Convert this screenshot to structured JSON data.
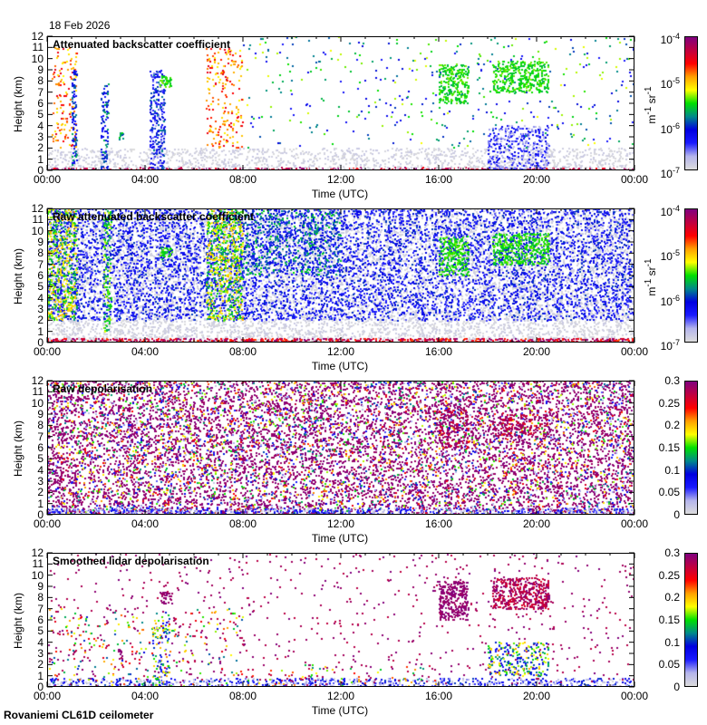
{
  "header": {
    "date": "18 Feb 2026"
  },
  "footer": {
    "station": "Rovaniemi CL61D ceilometer"
  },
  "colormap": [
    "#dcdcdc",
    "#b4b4ec",
    "#1a1aff",
    "#0000e0",
    "#008a8a",
    "#00e000",
    "#ffff00",
    "#ffa000",
    "#ff0000",
    "#c00040",
    "#800080"
  ],
  "chart_data": [
    {
      "type": "heatmap",
      "title": "Attenuated backscatter coefficient",
      "xlabel": "Time (UTC)",
      "ylabel": "Height (km)",
      "xlim": [
        0,
        24
      ],
      "ylim": [
        0,
        12
      ],
      "xticks": [
        "00:00",
        "04:00",
        "08:00",
        "12:00",
        "16:00",
        "20:00",
        "00:00"
      ],
      "yticks": [
        "0",
        "1",
        "2",
        "3",
        "4",
        "5",
        "6",
        "7",
        "8",
        "9",
        "10",
        "11",
        "12"
      ],
      "colorbar": {
        "scale": "log",
        "label": "m-1 sr-1",
        "label_parts": [
          "m",
          "-1",
          " sr",
          "-1"
        ],
        "ticks": [
          {
            "base": "10",
            "exp": "-7"
          },
          {
            "base": "10",
            "exp": "-6"
          },
          {
            "base": "10",
            "exp": "-5"
          },
          {
            "base": "10",
            "exp": "-4"
          }
        ],
        "range": [
          1e-07,
          0.0001
        ]
      },
      "features": [
        {
          "t": [
            0,
            24
          ],
          "h": [
            0,
            0.25
          ],
          "level": [
            0.8,
            1
          ],
          "density": 0.9
        },
        {
          "t": [
            0,
            24
          ],
          "h": [
            0,
            2
          ],
          "level": [
            0,
            0.05
          ],
          "density": 0.35
        },
        {
          "t": [
            0.2,
            1.2
          ],
          "h": [
            2,
            11
          ],
          "level": [
            0.6,
            0.85
          ],
          "density": 0.18
        },
        {
          "t": [
            6.5,
            8
          ],
          "h": [
            2,
            11
          ],
          "level": [
            0.6,
            0.85
          ],
          "density": 0.18
        },
        {
          "t": [
            1,
            1.2
          ],
          "h": [
            0,
            9
          ],
          "level": [
            0.2,
            0.45
          ],
          "density": 0.6
        },
        {
          "t": [
            2.2,
            2.5
          ],
          "h": [
            0,
            8
          ],
          "level": [
            0.2,
            0.45
          ],
          "density": 0.5
        },
        {
          "t": [
            4.2,
            4.8
          ],
          "h": [
            0,
            9
          ],
          "level": [
            0.1,
            0.4
          ],
          "density": 0.6
        },
        {
          "t": [
            4.6,
            5.1
          ],
          "h": [
            7.5,
            8.5
          ],
          "level": [
            0.45,
            0.55
          ],
          "density": 0.9
        },
        {
          "t": [
            2.9,
            3.1
          ],
          "h": [
            2.8,
            3.5
          ],
          "level": [
            0.35,
            0.5
          ],
          "density": 0.9
        },
        {
          "t": [
            16,
            17.2
          ],
          "h": [
            6,
            9.5
          ],
          "level": [
            0.45,
            0.55
          ],
          "density": 0.7
        },
        {
          "t": [
            18.2,
            20.5
          ],
          "h": [
            7,
            9.8
          ],
          "level": [
            0.45,
            0.55
          ],
          "density": 0.7
        },
        {
          "t": [
            18,
            20.5
          ],
          "h": [
            0,
            4
          ],
          "level": [
            0.05,
            0.3
          ],
          "density": 0.5
        },
        {
          "t": [
            8,
            24
          ],
          "h": [
            2,
            12
          ],
          "level": [
            0.2,
            0.6
          ],
          "density": 0.03
        }
      ]
    },
    {
      "type": "heatmap",
      "title": "Raw attenuated backscatter coefficient",
      "xlabel": "Time (UTC)",
      "ylabel": "Height (km)",
      "xlim": [
        0,
        24
      ],
      "ylim": [
        0,
        12
      ],
      "xticks": [
        "00:00",
        "04:00",
        "08:00",
        "12:00",
        "16:00",
        "20:00",
        "00:00"
      ],
      "yticks": [
        "0",
        "1",
        "2",
        "3",
        "4",
        "5",
        "6",
        "7",
        "8",
        "9",
        "10",
        "11",
        "12"
      ],
      "colorbar": {
        "scale": "log",
        "label": "m-1 sr-1",
        "label_parts": [
          "m",
          "-1",
          " sr",
          "-1"
        ],
        "ticks": [
          {
            "base": "10",
            "exp": "-7"
          },
          {
            "base": "10",
            "exp": "-6"
          },
          {
            "base": "10",
            "exp": "-5"
          },
          {
            "base": "10",
            "exp": "-4"
          }
        ],
        "range": [
          1e-07,
          0.0001
        ]
      },
      "features": [
        {
          "t": [
            0,
            24
          ],
          "h": [
            0,
            12
          ],
          "level": [
            0,
            0.05
          ],
          "density": 0.55
        },
        {
          "t": [
            0,
            24
          ],
          "h": [
            2,
            12
          ],
          "level": [
            0.15,
            0.35
          ],
          "density": 0.35
        },
        {
          "t": [
            0,
            24
          ],
          "h": [
            0,
            0.4
          ],
          "level": [
            0.75,
            1
          ],
          "density": 0.9
        },
        {
          "t": [
            0,
            1.2
          ],
          "h": [
            2,
            12
          ],
          "level": [
            0.4,
            0.7
          ],
          "density": 0.5
        },
        {
          "t": [
            6.5,
            8
          ],
          "h": [
            2,
            12
          ],
          "level": [
            0.4,
            0.7
          ],
          "density": 0.5
        },
        {
          "t": [
            2.3,
            2.6
          ],
          "h": [
            1,
            12
          ],
          "level": [
            0.4,
            0.6
          ],
          "density": 0.5
        },
        {
          "t": [
            8,
            12
          ],
          "h": [
            6,
            12
          ],
          "level": [
            0.3,
            0.5
          ],
          "density": 0.2
        },
        {
          "t": [
            4.6,
            5.1
          ],
          "h": [
            7.5,
            8.5
          ],
          "level": [
            0.45,
            0.55
          ],
          "density": 0.9
        },
        {
          "t": [
            16,
            17.2
          ],
          "h": [
            6,
            9.5
          ],
          "level": [
            0.45,
            0.55
          ],
          "density": 0.7
        },
        {
          "t": [
            18.2,
            20.5
          ],
          "h": [
            7,
            9.8
          ],
          "level": [
            0.45,
            0.55
          ],
          "density": 0.7
        }
      ]
    },
    {
      "type": "heatmap",
      "title": "Raw depolarisation",
      "xlabel": "Time (UTC)",
      "ylabel": "Height (km)",
      "xlim": [
        0,
        24
      ],
      "ylim": [
        0,
        12
      ],
      "xticks": [
        "00:00",
        "04:00",
        "08:00",
        "12:00",
        "16:00",
        "20:00",
        "00:00"
      ],
      "yticks": [
        "0",
        "1",
        "2",
        "3",
        "4",
        "5",
        "6",
        "7",
        "8",
        "9",
        "10",
        "11",
        "12"
      ],
      "colorbar": {
        "scale": "linear",
        "label": "",
        "ticks": [
          {
            "base": "0"
          },
          {
            "base": "0.05"
          },
          {
            "base": "0.1"
          },
          {
            "base": "0.15"
          },
          {
            "base": "0.2"
          },
          {
            "base": "0.25"
          },
          {
            "base": "0.3"
          }
        ],
        "range": [
          0,
          0.3
        ]
      },
      "features": [
        {
          "t": [
            0,
            24
          ],
          "h": [
            0,
            12
          ],
          "level": [
            0.95,
            1
          ],
          "density": 0.45
        },
        {
          "t": [
            0,
            24
          ],
          "h": [
            0,
            12
          ],
          "level": [
            0.05,
            0.9
          ],
          "density": 0.12
        },
        {
          "t": [
            0,
            24
          ],
          "h": [
            0,
            0.6
          ],
          "level": [
            0,
            0.3
          ],
          "density": 0.6
        },
        {
          "t": [
            16,
            17.2
          ],
          "h": [
            6,
            9.5
          ],
          "level": [
            0.85,
            1
          ],
          "density": 0.4
        },
        {
          "t": [
            18.2,
            20.5
          ],
          "h": [
            7,
            9
          ],
          "level": [
            0.85,
            1
          ],
          "density": 0.4
        }
      ]
    },
    {
      "type": "heatmap",
      "title": "Smoothed lidar depolarisation",
      "xlabel": "Time (UTC)",
      "ylabel": "Height (km)",
      "xlim": [
        0,
        24
      ],
      "ylim": [
        0,
        12
      ],
      "xticks": [
        "00:00",
        "04:00",
        "08:00",
        "12:00",
        "16:00",
        "20:00",
        "00:00"
      ],
      "yticks": [
        "0",
        "1",
        "2",
        "3",
        "4",
        "5",
        "6",
        "7",
        "8",
        "9",
        "10",
        "11",
        "12"
      ],
      "colorbar": {
        "scale": "linear",
        "label": "",
        "ticks": [
          {
            "base": "0"
          },
          {
            "base": "0.05"
          },
          {
            "base": "0.1"
          },
          {
            "base": "0.15"
          },
          {
            "base": "0.2"
          },
          {
            "base": "0.25"
          },
          {
            "base": "0.3"
          }
        ],
        "range": [
          0,
          0.3
        ]
      },
      "features": [
        {
          "t": [
            0,
            24
          ],
          "h": [
            0,
            0.8
          ],
          "level": [
            0,
            0.35
          ],
          "density": 0.5
        },
        {
          "t": [
            0,
            24
          ],
          "h": [
            0,
            12
          ],
          "level": [
            0.9,
            1
          ],
          "density": 0.03
        },
        {
          "t": [
            0,
            8
          ],
          "h": [
            0,
            7
          ],
          "level": [
            0.3,
            1
          ],
          "density": 0.06
        },
        {
          "t": [
            4.3,
            5
          ],
          "h": [
            0,
            6
          ],
          "level": [
            0.1,
            0.7
          ],
          "density": 0.3
        },
        {
          "t": [
            4.6,
            5.1
          ],
          "h": [
            7.5,
            8.5
          ],
          "level": [
            0.95,
            1
          ],
          "density": 0.9
        },
        {
          "t": [
            2.9,
            3.1
          ],
          "h": [
            2.8,
            3.5
          ],
          "level": [
            0.95,
            1
          ],
          "density": 0.9
        },
        {
          "t": [
            16,
            17.2
          ],
          "h": [
            6,
            9.5
          ],
          "level": [
            0.95,
            1
          ],
          "density": 0.8
        },
        {
          "t": [
            18.2,
            20.5
          ],
          "h": [
            7,
            9.8
          ],
          "level": [
            0.85,
            1
          ],
          "density": 0.8
        },
        {
          "t": [
            18,
            20.5
          ],
          "h": [
            1,
            4
          ],
          "level": [
            0.2,
            0.7
          ],
          "density": 0.4
        },
        {
          "t": [
            8,
            16
          ],
          "h": [
            0,
            2
          ],
          "level": [
            0.4,
            1
          ],
          "density": 0.06
        }
      ]
    }
  ]
}
